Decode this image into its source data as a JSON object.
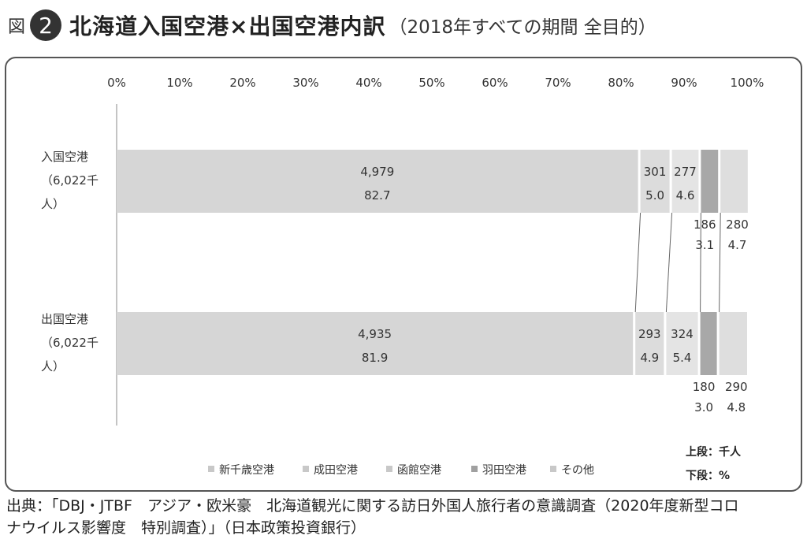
{
  "header": {
    "fig_label": "図",
    "fig_number": "2",
    "title": "北海道入国空港×出国空港内訳",
    "subtitle": "（2018年すべての期間 全目的）"
  },
  "source_line1": "出典：「DBJ・JTBF　アジア・欧米豪　北海道観光に関する訪日外国人旅行者の意識調査（2020年度新型コロ",
  "source_line2": "ナウイルス影響度　特別調査）」（日本政策投資銀行）",
  "chart_data": {
    "type": "bar",
    "orientation": "horizontal",
    "stacked": true,
    "normalized": true,
    "x_ticks": [
      "0%",
      "10%",
      "20%",
      "30%",
      "40%",
      "50%",
      "60%",
      "70%",
      "80%",
      "90%",
      "100%"
    ],
    "xlim": [
      0,
      100
    ],
    "categories": [
      {
        "label_lines": [
          "入国空港",
          "（6,022千",
          "人）"
        ]
      },
      {
        "label_lines": [
          "出国空港",
          "（6,022千",
          "人）"
        ]
      }
    ],
    "series": [
      {
        "name": "新千歳空港",
        "values_thousand": [
          "4,979",
          "4,935"
        ],
        "values_pct": [
          82.7,
          81.9
        ],
        "color": "#d6d6d6"
      },
      {
        "name": "成田空港",
        "values_thousand": [
          "301",
          "293"
        ],
        "values_pct": [
          5.0,
          4.9
        ],
        "color": "#dcdcdc"
      },
      {
        "name": "函館空港",
        "values_thousand": [
          "277",
          "324"
        ],
        "values_pct": [
          4.6,
          5.4
        ],
        "color": "#e4e4e4"
      },
      {
        "name": "羽田空港",
        "values_thousand": [
          "186",
          "180"
        ],
        "values_pct": [
          3.1,
          3.0
        ],
        "color": "#a8a8a8"
      },
      {
        "name": "その他",
        "values_thousand": [
          "280",
          "290"
        ],
        "values_pct": [
          4.7,
          4.8
        ],
        "color": "#dedede"
      }
    ],
    "note_upper": "上段：千人",
    "note_lower": "下段：%",
    "legend_position": "bottom"
  }
}
